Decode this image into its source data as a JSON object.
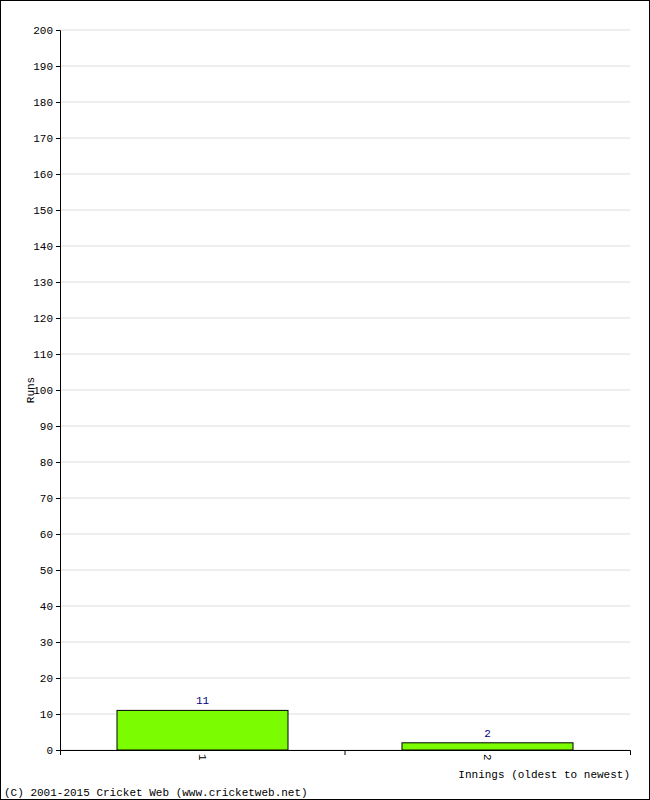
{
  "chart_data": {
    "type": "bar",
    "x_label": "Innings (oldest to newest)",
    "y_label": "Runs",
    "annotations": [
      "(C) 2001-2015 Cricket Web (www.cricketweb.net)"
    ],
    "categories": [
      "1",
      "2"
    ],
    "values": [
      11,
      2
    ],
    "color": "#7cfc00",
    "ylim": [
      0,
      200
    ],
    "yticks": [
      0,
      10,
      20,
      30,
      40,
      50,
      60,
      70,
      80,
      90,
      100,
      110,
      120,
      130,
      140,
      150,
      160,
      170,
      180,
      190,
      200
    ],
    "grid": true,
    "data_labels": true
  }
}
